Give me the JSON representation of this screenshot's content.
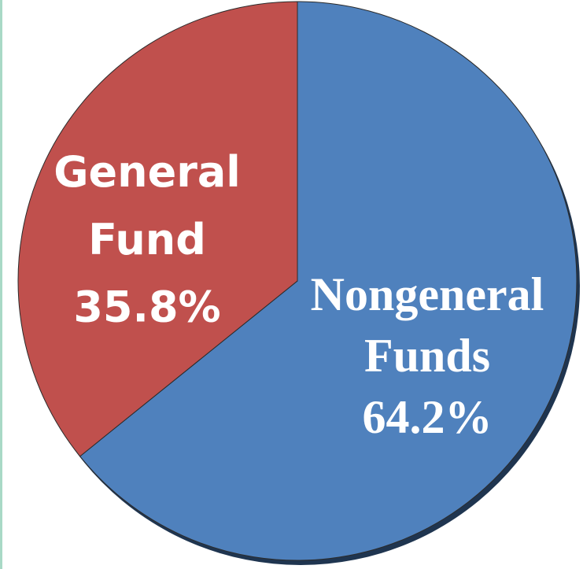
{
  "chart_data": {
    "type": "pie",
    "categories": [
      "Nongeneral Funds",
      "General Fund"
    ],
    "values": [
      64.2,
      35.8
    ],
    "value_labels": [
      "64.2%",
      "35.8%"
    ],
    "colors": [
      "#4f81bd",
      "#c0504d"
    ]
  }
}
